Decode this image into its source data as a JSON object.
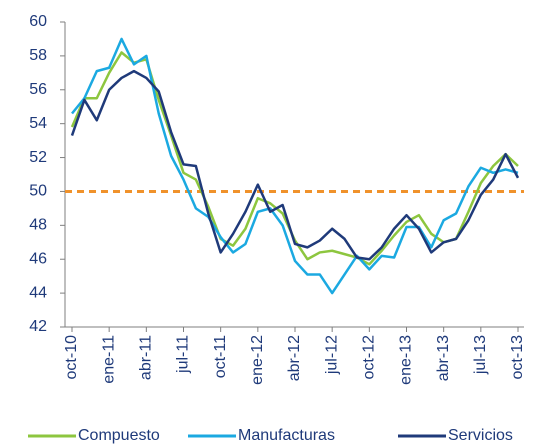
{
  "chart_data": {
    "type": "line",
    "categories": [
      "oct-10",
      null,
      null,
      "ene-11",
      null,
      null,
      "abr-11",
      null,
      null,
      "jul-11",
      null,
      null,
      "oct-11",
      null,
      null,
      "ene-12",
      null,
      null,
      "abr-12",
      null,
      null,
      "jul-12",
      null,
      null,
      "oct-12",
      null,
      null,
      "ene-13",
      null,
      null,
      "abr-13",
      null,
      null,
      "jul-13",
      null,
      null,
      "oct-13"
    ],
    "series": [
      {
        "name": "Compuesto",
        "color": "#8dc63f",
        "values": [
          53.8,
          55.5,
          55.5,
          57.0,
          58.2,
          57.6,
          57.8,
          55.4,
          53.3,
          51.1,
          50.7,
          49.1,
          47.2,
          46.8,
          47.8,
          49.6,
          49.3,
          48.7,
          47.1,
          46.0,
          46.4,
          46.5,
          46.3,
          46.1,
          45.7,
          46.5,
          47.4,
          48.2,
          48.6,
          47.5,
          47.0,
          47.2,
          48.8,
          50.5,
          51.5,
          52.2,
          51.5
        ]
      },
      {
        "name": "Manufacturas",
        "color": "#1ba9e1",
        "values": [
          54.6,
          55.5,
          57.1,
          57.3,
          59.0,
          57.5,
          58.0,
          54.6,
          52.1,
          50.7,
          49.0,
          48.5,
          47.3,
          46.4,
          46.9,
          48.8,
          49.0,
          48.0,
          45.9,
          45.1,
          45.1,
          44.0,
          45.1,
          46.2,
          45.4,
          46.2,
          46.1,
          47.9,
          47.9,
          46.7,
          48.3,
          48.7,
          50.3,
          51.4,
          51.1,
          51.3,
          51.1
        ]
      },
      {
        "name": "Servicios",
        "color": "#1f3a7a",
        "values": [
          53.3,
          55.4,
          54.2,
          56.0,
          56.7,
          57.1,
          56.7,
          55.9,
          53.5,
          51.6,
          51.5,
          48.7,
          46.4,
          47.5,
          48.8,
          50.4,
          48.8,
          49.2,
          46.9,
          46.7,
          47.1,
          47.8,
          47.2,
          46.1,
          46.0,
          46.7,
          47.8,
          48.6,
          47.8,
          46.4,
          47.0,
          47.2,
          48.3,
          49.8,
          50.7,
          52.2,
          50.8
        ]
      }
    ],
    "ylim": [
      42,
      60
    ],
    "yticks": [
      42,
      44,
      46,
      48,
      50,
      52,
      54,
      56,
      58,
      60
    ],
    "reference_line": {
      "value": 50,
      "color": "#f0922b"
    },
    "legend": "bottom"
  }
}
